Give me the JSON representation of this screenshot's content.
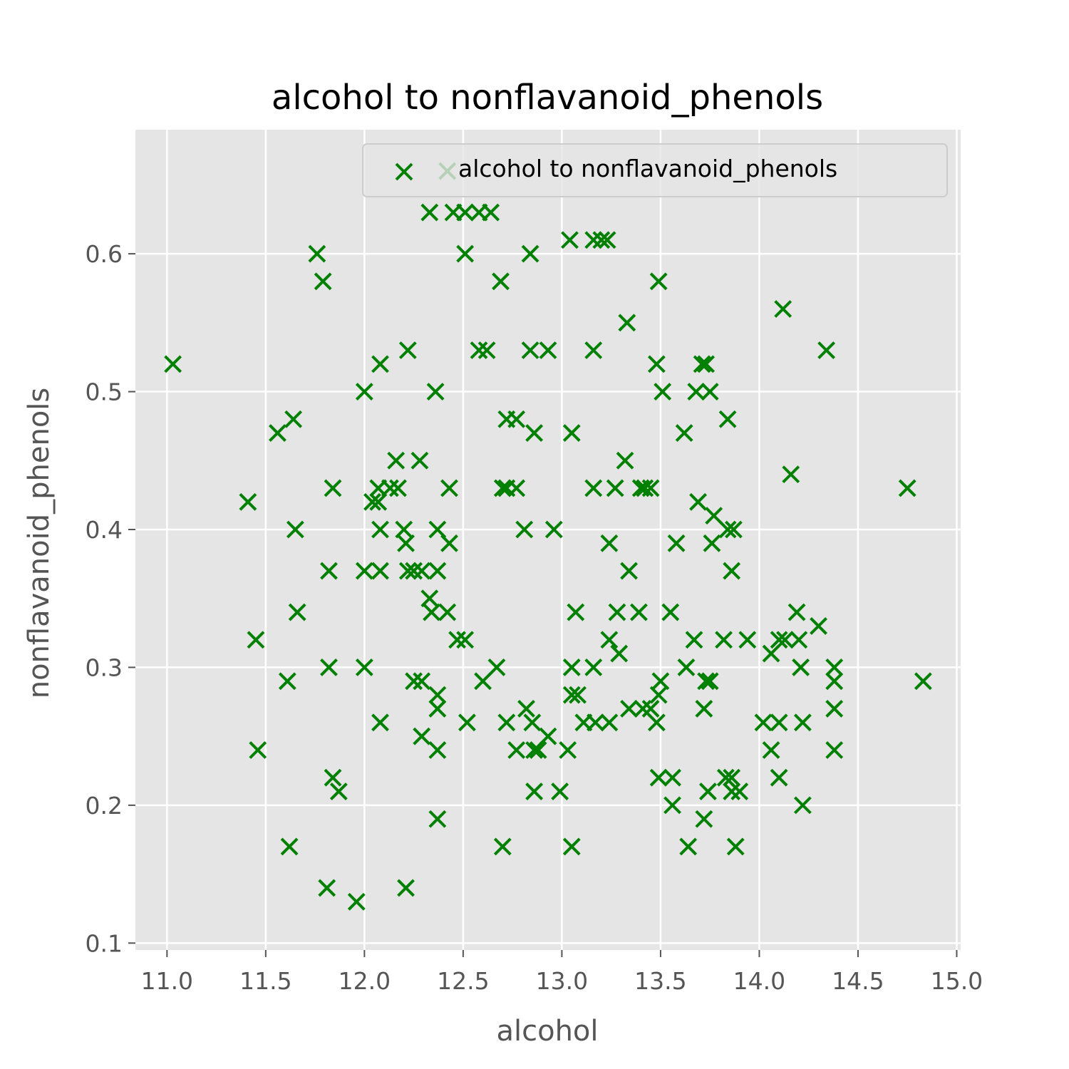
{
  "chart_data": {
    "type": "scatter",
    "title": "alcohol to nonflavanoid_phenols",
    "xlabel": "alcohol",
    "ylabel": "nonflavanoid_phenols",
    "xlim": [
      10.84,
      15.02
    ],
    "ylim": [
      0.095,
      0.69
    ],
    "xticks": [
      "11.0",
      "11.5",
      "12.0",
      "12.5",
      "13.0",
      "13.5",
      "14.0",
      "14.5",
      "15.0"
    ],
    "yticks": [
      "0.1",
      "0.2",
      "0.3",
      "0.4",
      "0.5",
      "0.6"
    ],
    "grid": true,
    "legend": {
      "position": "top-right",
      "entries": [
        "alcohol to nonflavanoid_phenols"
      ]
    },
    "marker": "x",
    "color": "#008000",
    "background": "#e5e5e5",
    "series": [
      {
        "name": "alcohol to nonflavanoid_phenols",
        "points": [
          [
            11.03,
            0.52
          ],
          [
            11.41,
            0.42
          ],
          [
            11.45,
            0.32
          ],
          [
            11.46,
            0.24
          ],
          [
            11.56,
            0.47
          ],
          [
            11.61,
            0.29
          ],
          [
            11.62,
            0.17
          ],
          [
            11.64,
            0.48
          ],
          [
            11.65,
            0.4
          ],
          [
            11.66,
            0.34
          ],
          [
            11.76,
            0.6
          ],
          [
            11.79,
            0.58
          ],
          [
            11.81,
            0.14
          ],
          [
            11.82,
            0.37
          ],
          [
            11.82,
            0.3
          ],
          [
            11.84,
            0.43
          ],
          [
            11.84,
            0.22
          ],
          [
            11.87,
            0.21
          ],
          [
            11.96,
            0.13
          ],
          [
            12.0,
            0.5
          ],
          [
            12.0,
            0.37
          ],
          [
            12.0,
            0.3
          ],
          [
            12.04,
            0.42
          ],
          [
            12.07,
            0.42
          ],
          [
            12.07,
            0.43
          ],
          [
            12.08,
            0.4
          ],
          [
            12.08,
            0.37
          ],
          [
            12.08,
            0.52
          ],
          [
            12.08,
            0.26
          ],
          [
            12.13,
            0.43
          ],
          [
            12.16,
            0.45
          ],
          [
            12.17,
            0.43
          ],
          [
            12.2,
            0.4
          ],
          [
            12.21,
            0.39
          ],
          [
            12.21,
            0.14
          ],
          [
            12.22,
            0.53
          ],
          [
            12.22,
            0.37
          ],
          [
            12.25,
            0.37
          ],
          [
            12.25,
            0.29
          ],
          [
            12.28,
            0.45
          ],
          [
            12.29,
            0.37
          ],
          [
            12.29,
            0.29
          ],
          [
            12.29,
            0.25
          ],
          [
            12.33,
            0.63
          ],
          [
            12.33,
            0.35
          ],
          [
            12.34,
            0.34
          ],
          [
            12.36,
            0.5
          ],
          [
            12.37,
            0.4
          ],
          [
            12.37,
            0.37
          ],
          [
            12.37,
            0.28
          ],
          [
            12.37,
            0.27
          ],
          [
            12.37,
            0.24
          ],
          [
            12.37,
            0.19
          ],
          [
            12.42,
            0.66
          ],
          [
            12.42,
            0.34
          ],
          [
            12.43,
            0.43
          ],
          [
            12.43,
            0.39
          ],
          [
            12.45,
            0.63
          ],
          [
            12.47,
            0.32
          ],
          [
            12.51,
            0.63
          ],
          [
            12.51,
            0.6
          ],
          [
            12.51,
            0.32
          ],
          [
            12.52,
            0.26
          ],
          [
            12.58,
            0.63
          ],
          [
            12.58,
            0.53
          ],
          [
            12.6,
            0.29
          ],
          [
            12.62,
            0.53
          ],
          [
            12.64,
            0.63
          ],
          [
            12.67,
            0.3
          ],
          [
            12.69,
            0.58
          ],
          [
            12.7,
            0.43
          ],
          [
            12.7,
            0.17
          ],
          [
            12.72,
            0.48
          ],
          [
            12.72,
            0.26
          ],
          [
            12.72,
            0.43
          ],
          [
            12.77,
            0.48
          ],
          [
            12.77,
            0.43
          ],
          [
            12.77,
            0.24
          ],
          [
            12.81,
            0.4
          ],
          [
            12.82,
            0.27
          ],
          [
            12.84,
            0.6
          ],
          [
            12.84,
            0.53
          ],
          [
            12.85,
            0.26
          ],
          [
            12.86,
            0.47
          ],
          [
            12.86,
            0.24
          ],
          [
            12.86,
            0.21
          ],
          [
            12.88,
            0.24
          ],
          [
            12.93,
            0.53
          ],
          [
            12.93,
            0.25
          ],
          [
            12.96,
            0.4
          ],
          [
            12.99,
            0.21
          ],
          [
            13.03,
            0.24
          ],
          [
            13.04,
            0.61
          ],
          [
            13.05,
            0.47
          ],
          [
            13.05,
            0.3
          ],
          [
            13.05,
            0.28
          ],
          [
            13.05,
            0.17
          ],
          [
            13.07,
            0.34
          ],
          [
            13.08,
            0.28
          ],
          [
            13.11,
            0.26
          ],
          [
            13.16,
            0.61
          ],
          [
            13.16,
            0.53
          ],
          [
            13.16,
            0.43
          ],
          [
            13.16,
            0.3
          ],
          [
            13.17,
            0.26
          ],
          [
            13.2,
            0.61
          ],
          [
            13.23,
            0.61
          ],
          [
            13.24,
            0.39
          ],
          [
            13.24,
            0.26
          ],
          [
            13.24,
            0.32
          ],
          [
            13.27,
            0.43
          ],
          [
            13.28,
            0.34
          ],
          [
            13.29,
            0.31
          ],
          [
            13.32,
            0.45
          ],
          [
            13.33,
            0.55
          ],
          [
            13.34,
            0.37
          ],
          [
            13.34,
            0.27
          ],
          [
            13.39,
            0.34
          ],
          [
            13.4,
            0.43
          ],
          [
            13.41,
            0.27
          ],
          [
            13.42,
            0.43
          ],
          [
            13.45,
            0.27
          ],
          [
            13.45,
            0.43
          ],
          [
            13.48,
            0.52
          ],
          [
            13.48,
            0.26
          ],
          [
            13.49,
            0.58
          ],
          [
            13.49,
            0.28
          ],
          [
            13.49,
            0.22
          ],
          [
            13.5,
            0.29
          ],
          [
            13.51,
            0.5
          ],
          [
            13.55,
            0.34
          ],
          [
            13.56,
            0.22
          ],
          [
            13.56,
            0.2
          ],
          [
            13.58,
            0.39
          ],
          [
            13.62,
            0.47
          ],
          [
            13.63,
            0.3
          ],
          [
            13.64,
            0.17
          ],
          [
            13.67,
            0.32
          ],
          [
            13.68,
            0.5
          ],
          [
            13.69,
            0.42
          ],
          [
            13.71,
            0.52
          ],
          [
            13.72,
            0.27
          ],
          [
            13.73,
            0.52
          ],
          [
            13.73,
            0.29
          ],
          [
            13.74,
            0.21
          ],
          [
            13.75,
            0.5
          ],
          [
            13.75,
            0.29
          ],
          [
            13.76,
            0.39
          ],
          [
            13.77,
            0.41
          ],
          [
            13.72,
            0.19
          ],
          [
            13.82,
            0.32
          ],
          [
            13.83,
            0.22
          ],
          [
            13.84,
            0.48
          ],
          [
            13.84,
            0.4
          ],
          [
            13.86,
            0.22
          ],
          [
            13.86,
            0.21
          ],
          [
            13.86,
            0.37
          ],
          [
            13.87,
            0.4
          ],
          [
            13.88,
            0.17
          ],
          [
            13.9,
            0.21
          ],
          [
            13.94,
            0.32
          ],
          [
            14.02,
            0.26
          ],
          [
            14.06,
            0.31
          ],
          [
            14.06,
            0.24
          ],
          [
            14.1,
            0.32
          ],
          [
            14.1,
            0.26
          ],
          [
            14.1,
            0.22
          ],
          [
            14.12,
            0.56
          ],
          [
            14.13,
            0.32
          ],
          [
            14.16,
            0.44
          ],
          [
            14.19,
            0.34
          ],
          [
            14.2,
            0.32
          ],
          [
            14.21,
            0.3
          ],
          [
            14.22,
            0.26
          ],
          [
            14.22,
            0.2
          ],
          [
            14.3,
            0.33
          ],
          [
            14.34,
            0.53
          ],
          [
            14.38,
            0.3
          ],
          [
            14.38,
            0.29
          ],
          [
            14.38,
            0.27
          ],
          [
            14.38,
            0.24
          ],
          [
            14.75,
            0.43
          ],
          [
            14.83,
            0.29
          ]
        ]
      }
    ]
  }
}
